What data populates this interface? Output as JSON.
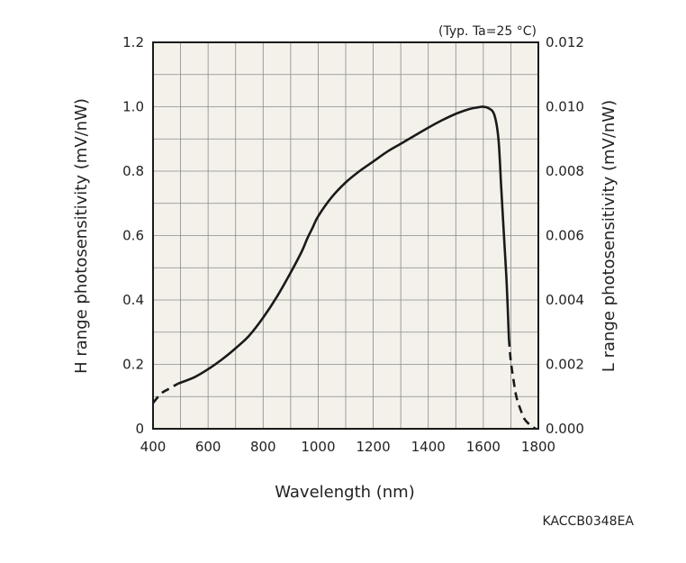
{
  "chart_data": {
    "type": "line",
    "condition_note": "(Typ. Ta=25 °C)",
    "xlabel": "Wavelength (nm)",
    "ylabel_left": "H range photosensitivity (mV/nW)",
    "ylabel_right": "L range photosensitivity (mV/nW)",
    "code": "KACCB0348EA",
    "xlim": [
      400,
      1800
    ],
    "ylim_left": [
      0,
      1.2
    ],
    "ylim_right": [
      0,
      0.012
    ],
    "x_ticks": [
      "400",
      "600",
      "800",
      "1000",
      "1200",
      "1400",
      "1600",
      "1800"
    ],
    "y_ticks_left": [
      "0",
      "0.2",
      "0.4",
      "0.6",
      "0.8",
      "1.0",
      "1.2"
    ],
    "y_ticks_right": [
      "0.000",
      "0.002",
      "0.004",
      "0.006",
      "0.008",
      "0.010",
      "0.012"
    ],
    "grid": true,
    "colors": {
      "line": "#1a1a1a",
      "plot_background": "#f3f1ea",
      "grid": "#8a8a8a"
    },
    "series": [
      {
        "style": "dashed",
        "x": [
          400,
          430,
          460,
          490
        ],
        "y": [
          0.08,
          0.11,
          0.125,
          0.14
        ]
      },
      {
        "style": "solid",
        "x": [
          490,
          550,
          600,
          650,
          700,
          750,
          800,
          850,
          900,
          940,
          960,
          980,
          1000,
          1050,
          1100,
          1150,
          1200,
          1250,
          1300,
          1350,
          1400,
          1450,
          1500,
          1550,
          1580,
          1600,
          1620,
          1640,
          1655,
          1665,
          1675,
          1685,
          1693
        ],
        "y": [
          0.14,
          0.16,
          0.185,
          0.215,
          0.25,
          0.29,
          0.345,
          0.41,
          0.485,
          0.55,
          0.59,
          0.625,
          0.66,
          0.72,
          0.765,
          0.8,
          0.83,
          0.86,
          0.885,
          0.91,
          0.935,
          0.958,
          0.978,
          0.993,
          0.998,
          1.0,
          0.995,
          0.975,
          0.9,
          0.75,
          0.6,
          0.45,
          0.28
        ]
      },
      {
        "style": "dashed",
        "x": [
          1693,
          1700,
          1710,
          1720,
          1735,
          1750,
          1770,
          1790
        ],
        "y": [
          0.28,
          0.21,
          0.15,
          0.1,
          0.06,
          0.03,
          0.012,
          0.0
        ]
      }
    ]
  }
}
